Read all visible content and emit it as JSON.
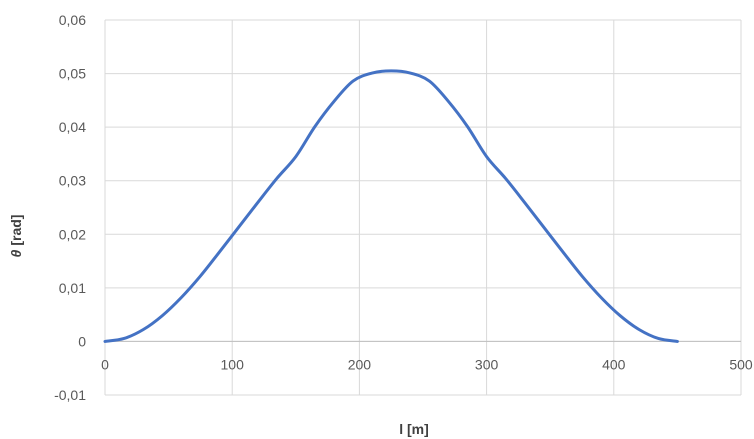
{
  "chart_data": {
    "type": "line",
    "title": "",
    "xlabel": "l [m]",
    "ylabel_symbol": "θ",
    "ylabel_unit": "[rad]",
    "xlim": [
      0,
      500
    ],
    "ylim": [
      -0.01,
      0.06
    ],
    "x_ticks": [
      0,
      100,
      200,
      300,
      400,
      500
    ],
    "y_ticks": [
      -0.01,
      0,
      0.01,
      0.02,
      0.03,
      0.04,
      0.05,
      0.06
    ],
    "x_tick_labels": [
      "0",
      "100",
      "200",
      "300",
      "400",
      "500"
    ],
    "y_tick_labels": [
      "-0,01",
      "0",
      "0,01",
      "0,02",
      "0,03",
      "0,04",
      "0,05",
      "0,06"
    ],
    "grid": true,
    "legend": "none",
    "series": [
      {
        "color": "#4472C4",
        "x": [
          0,
          15,
          30,
          45,
          60,
          75,
          90,
          105,
          120,
          135,
          150,
          165,
          180,
          195,
          210,
          225,
          240,
          255,
          270,
          285,
          300,
          315,
          330,
          345,
          360,
          375,
          390,
          405,
          420,
          435,
          450
        ],
        "y": [
          0,
          0.00055,
          0.0022,
          0.0048,
          0.0082,
          0.0122,
          0.0167,
          0.0213,
          0.0259,
          0.0304,
          0.0345,
          0.0401,
          0.0448,
          0.0486,
          0.0501,
          0.0505,
          0.0501,
          0.0486,
          0.0448,
          0.0401,
          0.0345,
          0.0304,
          0.0259,
          0.0213,
          0.0167,
          0.0122,
          0.0082,
          0.0048,
          0.0022,
          0.00055,
          0
        ]
      }
    ]
  }
}
